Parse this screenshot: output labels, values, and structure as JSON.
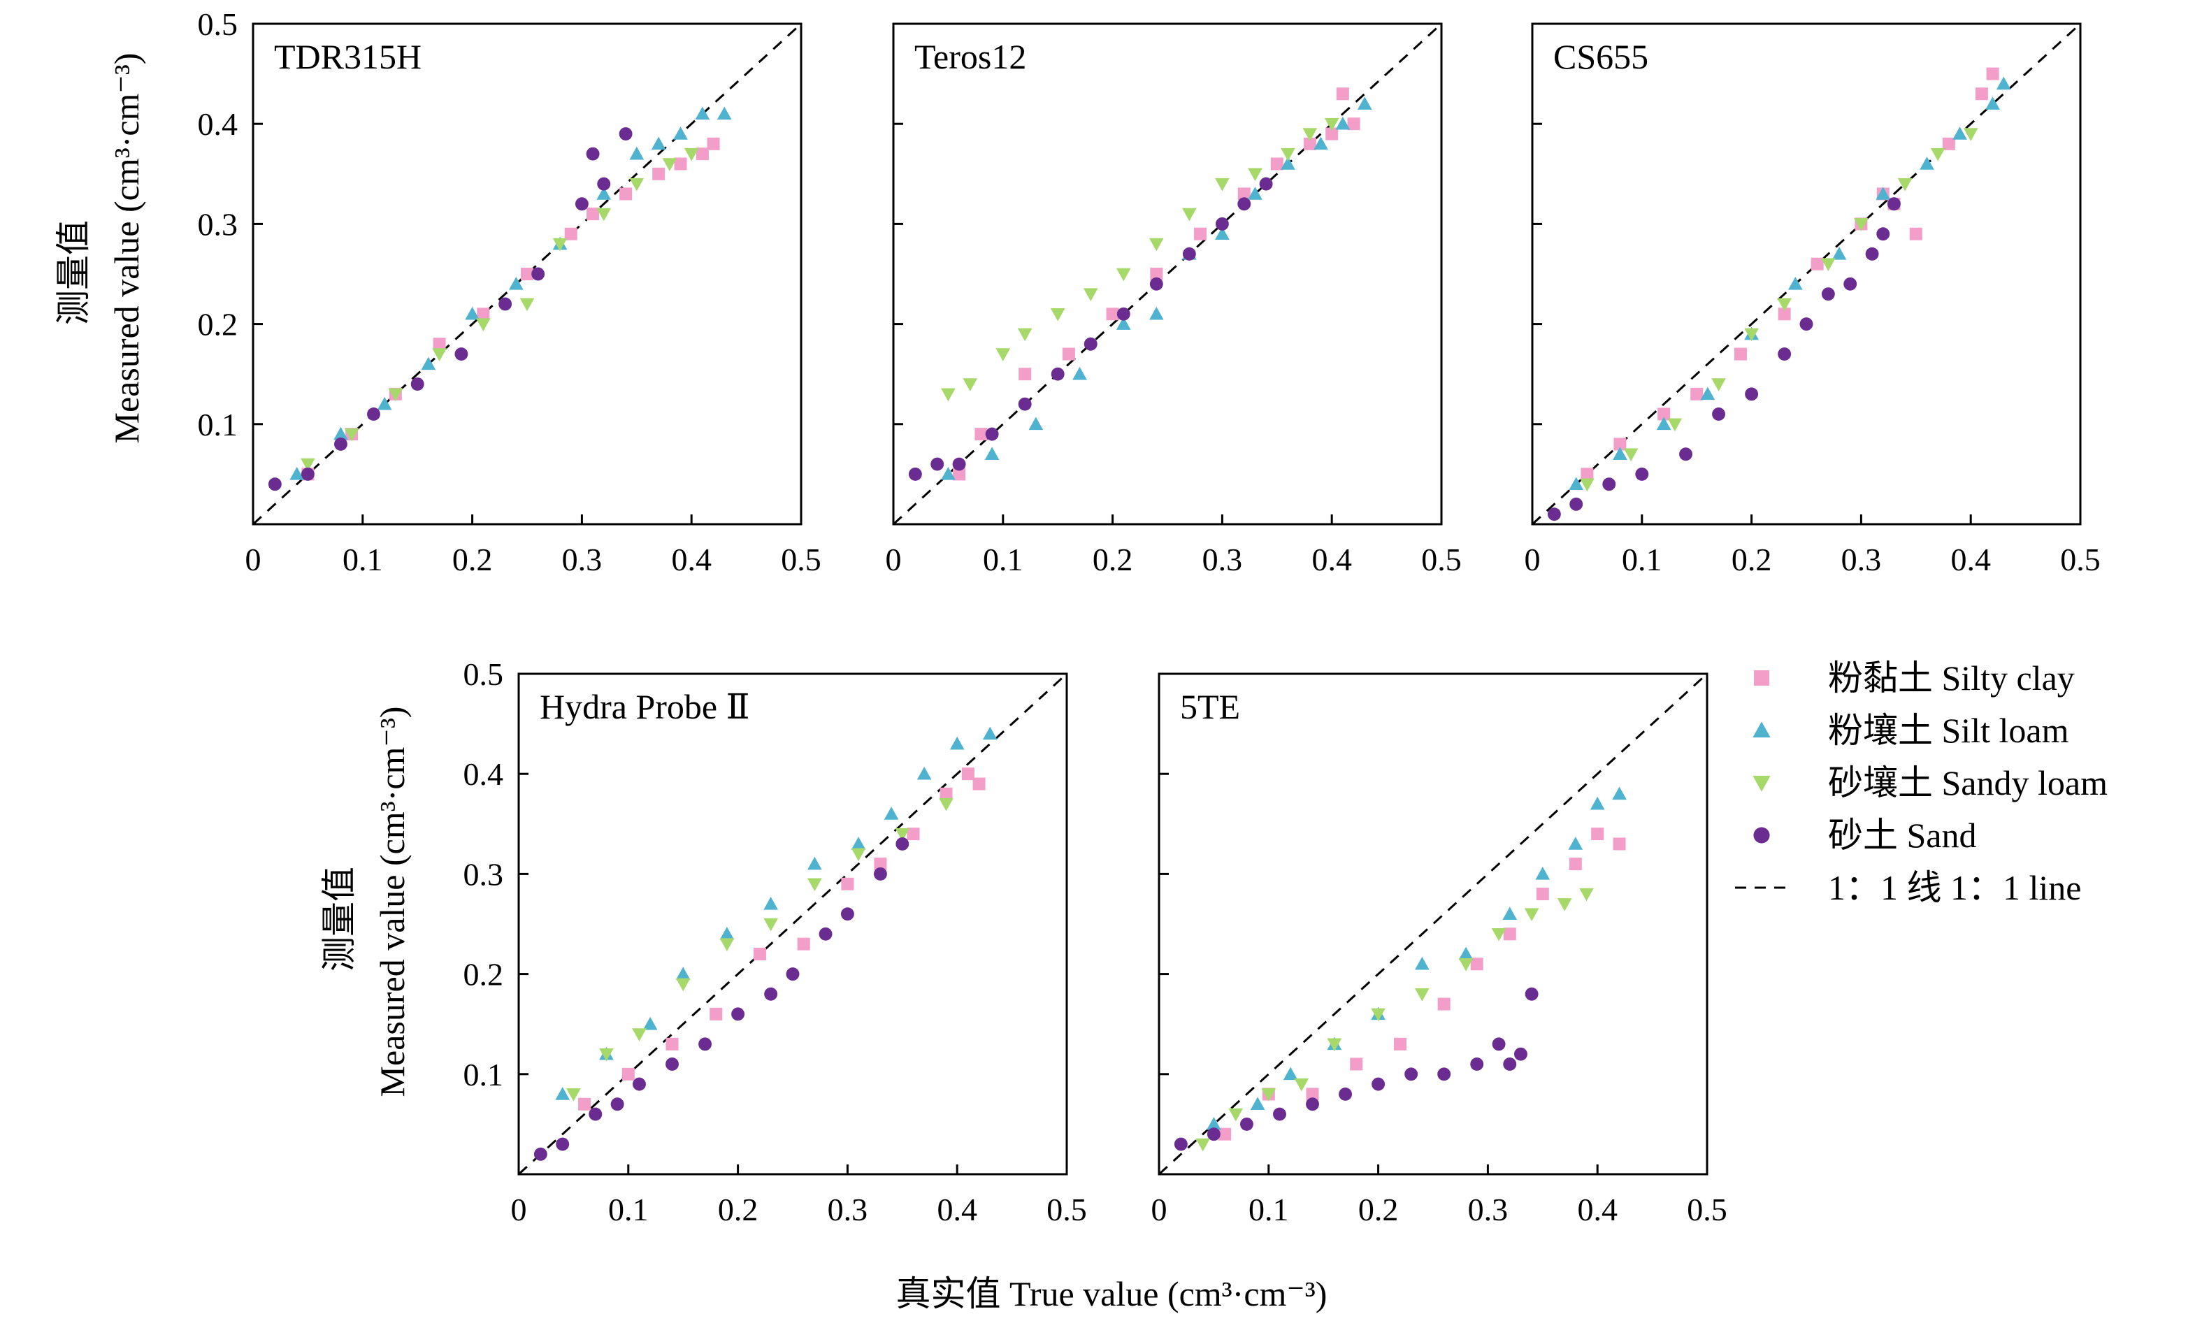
{
  "figure": {
    "xlabel": "真实值 True value (cm³·cm⁻³)",
    "ylabel_zh": "测量值",
    "ylabel_en": "Measured value (cm³·cm⁻³)"
  },
  "legend": {
    "position": "right of bottom row",
    "items": [
      {
        "label": "粉黏土 Silty clay",
        "marker": "square",
        "color": "#f29ec8"
      },
      {
        "label": "粉壤土 Silt loam",
        "marker": "triangle-up",
        "color": "#4fb3cf"
      },
      {
        "label": "砂壤土 Sandy loam",
        "marker": "triangle-down",
        "color": "#a6d96a"
      },
      {
        "label": "砂土 Sand",
        "marker": "circle",
        "color": "#6a2c91"
      },
      {
        "label": "1：1 线 1：1 line",
        "marker": "dashed-line",
        "color": "#000000"
      }
    ]
  },
  "chart_data": [
    {
      "type": "scatter",
      "title": "TDR315H",
      "xlim": [
        0,
        0.5
      ],
      "ylim": [
        0,
        0.5
      ],
      "xticks": [
        "0",
        "0.1",
        "0.2",
        "0.3",
        "0.4",
        "0.5"
      ],
      "yticks": [
        "0.1",
        "0.2",
        "0.3",
        "0.4",
        "0.5"
      ],
      "reference_line": "1:1",
      "series": [
        {
          "name": "粉黏土 Silty clay",
          "x": [
            0.05,
            0.09,
            0.13,
            0.17,
            0.21,
            0.25,
            0.29,
            0.31,
            0.34,
            0.37,
            0.39,
            0.41,
            0.42
          ],
          "y": [
            0.05,
            0.09,
            0.13,
            0.18,
            0.21,
            0.25,
            0.29,
            0.31,
            0.33,
            0.35,
            0.36,
            0.37,
            0.38
          ]
        },
        {
          "name": "粉壤土 Silt loam",
          "x": [
            0.04,
            0.08,
            0.12,
            0.16,
            0.2,
            0.24,
            0.28,
            0.32,
            0.35,
            0.37,
            0.39,
            0.41,
            0.43
          ],
          "y": [
            0.05,
            0.09,
            0.12,
            0.16,
            0.21,
            0.24,
            0.28,
            0.33,
            0.37,
            0.38,
            0.39,
            0.41,
            0.41
          ]
        },
        {
          "name": "砂壤土 Sandy loam",
          "x": [
            0.05,
            0.09,
            0.13,
            0.17,
            0.21,
            0.25,
            0.28,
            0.32,
            0.35,
            0.38,
            0.4
          ],
          "y": [
            0.06,
            0.09,
            0.13,
            0.17,
            0.2,
            0.22,
            0.28,
            0.31,
            0.34,
            0.36,
            0.37
          ]
        },
        {
          "name": "砂土 Sand",
          "x": [
            0.02,
            0.05,
            0.08,
            0.11,
            0.15,
            0.19,
            0.23,
            0.26,
            0.3,
            0.31,
            0.32,
            0.34
          ],
          "y": [
            0.04,
            0.05,
            0.08,
            0.11,
            0.14,
            0.17,
            0.22,
            0.25,
            0.32,
            0.37,
            0.34,
            0.39
          ]
        }
      ]
    },
    {
      "type": "scatter",
      "title": "Teros12",
      "xlim": [
        0,
        0.5
      ],
      "ylim": [
        0,
        0.5
      ],
      "xticks": [
        "0",
        "0.1",
        "0.2",
        "0.3",
        "0.4",
        "0.5"
      ],
      "yticks": [],
      "reference_line": "1:1",
      "series": [
        {
          "name": "粉黏土 Silty clay",
          "x": [
            0.06,
            0.08,
            0.12,
            0.16,
            0.2,
            0.24,
            0.28,
            0.32,
            0.35,
            0.38,
            0.4,
            0.41,
            0.42
          ],
          "y": [
            0.05,
            0.09,
            0.15,
            0.17,
            0.21,
            0.25,
            0.29,
            0.33,
            0.36,
            0.38,
            0.39,
            0.43,
            0.4
          ]
        },
        {
          "name": "粉壤土 Silt loam",
          "x": [
            0.05,
            0.09,
            0.13,
            0.17,
            0.21,
            0.24,
            0.27,
            0.3,
            0.33,
            0.36,
            0.39,
            0.41,
            0.43
          ],
          "y": [
            0.05,
            0.07,
            0.1,
            0.15,
            0.2,
            0.21,
            0.27,
            0.29,
            0.33,
            0.36,
            0.38,
            0.4,
            0.42
          ]
        },
        {
          "name": "砂壤土 Sandy loam",
          "x": [
            0.05,
            0.07,
            0.1,
            0.12,
            0.15,
            0.18,
            0.21,
            0.24,
            0.27,
            0.3,
            0.33,
            0.36,
            0.38,
            0.4
          ],
          "y": [
            0.13,
            0.14,
            0.17,
            0.19,
            0.21,
            0.23,
            0.25,
            0.28,
            0.31,
            0.34,
            0.35,
            0.37,
            0.39,
            0.4
          ]
        },
        {
          "name": "砂土 Sand",
          "x": [
            0.02,
            0.04,
            0.06,
            0.09,
            0.12,
            0.15,
            0.18,
            0.21,
            0.24,
            0.27,
            0.3,
            0.32,
            0.34
          ],
          "y": [
            0.05,
            0.06,
            0.06,
            0.09,
            0.12,
            0.15,
            0.18,
            0.21,
            0.24,
            0.27,
            0.3,
            0.32,
            0.34
          ]
        }
      ]
    },
    {
      "type": "scatter",
      "title": "CS655",
      "xlim": [
        0,
        0.5
      ],
      "ylim": [
        0,
        0.5
      ],
      "xticks": [
        "0",
        "0.1",
        "0.2",
        "0.3",
        "0.4",
        "0.5"
      ],
      "yticks": [],
      "reference_line": "1:1",
      "series": [
        {
          "name": "粉黏土 Silty clay",
          "x": [
            0.05,
            0.08,
            0.12,
            0.15,
            0.19,
            0.23,
            0.26,
            0.3,
            0.32,
            0.33,
            0.35,
            0.38,
            0.41,
            0.42
          ],
          "y": [
            0.05,
            0.08,
            0.11,
            0.13,
            0.17,
            0.21,
            0.26,
            0.3,
            0.33,
            0.32,
            0.29,
            0.38,
            0.43,
            0.45
          ]
        },
        {
          "name": "粉壤土 Silt loam",
          "x": [
            0.04,
            0.08,
            0.12,
            0.16,
            0.2,
            0.24,
            0.28,
            0.32,
            0.36,
            0.39,
            0.42,
            0.43
          ],
          "y": [
            0.04,
            0.07,
            0.1,
            0.13,
            0.19,
            0.24,
            0.27,
            0.33,
            0.36,
            0.39,
            0.42,
            0.44
          ]
        },
        {
          "name": "砂壤土 Sandy loam",
          "x": [
            0.05,
            0.09,
            0.13,
            0.17,
            0.2,
            0.23,
            0.27,
            0.3,
            0.34,
            0.37,
            0.4
          ],
          "y": [
            0.04,
            0.07,
            0.1,
            0.14,
            0.19,
            0.22,
            0.26,
            0.3,
            0.34,
            0.37,
            0.39
          ]
        },
        {
          "name": "砂土 Sand",
          "x": [
            0.02,
            0.04,
            0.07,
            0.1,
            0.14,
            0.17,
            0.2,
            0.23,
            0.25,
            0.27,
            0.29,
            0.31,
            0.32,
            0.33
          ],
          "y": [
            0.01,
            0.02,
            0.04,
            0.05,
            0.07,
            0.11,
            0.13,
            0.17,
            0.2,
            0.23,
            0.24,
            0.27,
            0.29,
            0.32
          ]
        }
      ]
    },
    {
      "type": "scatter",
      "title": "Hydra Probe Ⅱ",
      "xlim": [
        0,
        0.5
      ],
      "ylim": [
        0,
        0.5
      ],
      "xticks": [
        "0",
        "0.1",
        "0.2",
        "0.3",
        "0.4",
        "0.5"
      ],
      "yticks": [
        "0.1",
        "0.2",
        "0.3",
        "0.4",
        "0.5"
      ],
      "reference_line": "1:1",
      "series": [
        {
          "name": "粉黏土 Silty clay",
          "x": [
            0.06,
            0.1,
            0.14,
            0.18,
            0.22,
            0.26,
            0.3,
            0.33,
            0.36,
            0.39,
            0.41,
            0.42
          ],
          "y": [
            0.07,
            0.1,
            0.13,
            0.16,
            0.22,
            0.23,
            0.29,
            0.31,
            0.34,
            0.38,
            0.4,
            0.39
          ]
        },
        {
          "name": "粉壤土 Silt loam",
          "x": [
            0.04,
            0.08,
            0.12,
            0.15,
            0.19,
            0.23,
            0.27,
            0.31,
            0.34,
            0.37,
            0.4,
            0.43
          ],
          "y": [
            0.08,
            0.12,
            0.15,
            0.2,
            0.24,
            0.27,
            0.31,
            0.33,
            0.36,
            0.4,
            0.43,
            0.44
          ]
        },
        {
          "name": "砂壤土 Sandy loam",
          "x": [
            0.05,
            0.08,
            0.11,
            0.15,
            0.19,
            0.23,
            0.27,
            0.31,
            0.35,
            0.39
          ],
          "y": [
            0.08,
            0.12,
            0.14,
            0.19,
            0.23,
            0.25,
            0.29,
            0.32,
            0.34,
            0.37
          ]
        },
        {
          "name": "砂土 Sand",
          "x": [
            0.02,
            0.04,
            0.07,
            0.09,
            0.11,
            0.14,
            0.17,
            0.2,
            0.23,
            0.25,
            0.28,
            0.3,
            0.33,
            0.35
          ],
          "y": [
            0.02,
            0.03,
            0.06,
            0.07,
            0.09,
            0.11,
            0.13,
            0.16,
            0.18,
            0.2,
            0.24,
            0.26,
            0.3,
            0.33
          ]
        }
      ]
    },
    {
      "type": "scatter",
      "title": "5TE",
      "xlim": [
        0,
        0.5
      ],
      "ylim": [
        0,
        0.5
      ],
      "xticks": [
        "0",
        "0.1",
        "0.2",
        "0.3",
        "0.4",
        "0.5"
      ],
      "yticks": [],
      "reference_line": "1:1",
      "series": [
        {
          "name": "粉黏土 Silty clay",
          "x": [
            0.06,
            0.1,
            0.14,
            0.18,
            0.22,
            0.26,
            0.29,
            0.32,
            0.35,
            0.38,
            0.4,
            0.42
          ],
          "y": [
            0.04,
            0.08,
            0.08,
            0.11,
            0.13,
            0.17,
            0.21,
            0.24,
            0.28,
            0.31,
            0.34,
            0.33
          ]
        },
        {
          "name": "粉壤土 Silt loam",
          "x": [
            0.05,
            0.09,
            0.12,
            0.16,
            0.2,
            0.24,
            0.28,
            0.32,
            0.35,
            0.38,
            0.4,
            0.42
          ],
          "y": [
            0.05,
            0.07,
            0.1,
            0.13,
            0.16,
            0.21,
            0.22,
            0.26,
            0.3,
            0.33,
            0.37,
            0.38
          ]
        },
        {
          "name": "砂壤土 Sandy loam",
          "x": [
            0.04,
            0.07,
            0.1,
            0.13,
            0.16,
            0.2,
            0.24,
            0.28,
            0.31,
            0.34,
            0.37,
            0.39
          ],
          "y": [
            0.03,
            0.06,
            0.08,
            0.09,
            0.13,
            0.16,
            0.18,
            0.21,
            0.24,
            0.26,
            0.27,
            0.28
          ]
        },
        {
          "name": "砂土 Sand",
          "x": [
            0.02,
            0.05,
            0.08,
            0.11,
            0.14,
            0.17,
            0.2,
            0.23,
            0.26,
            0.29,
            0.31,
            0.32,
            0.33,
            0.34
          ],
          "y": [
            0.03,
            0.04,
            0.05,
            0.06,
            0.07,
            0.08,
            0.09,
            0.1,
            0.1,
            0.11,
            0.13,
            0.11,
            0.12,
            0.18
          ]
        }
      ]
    }
  ]
}
